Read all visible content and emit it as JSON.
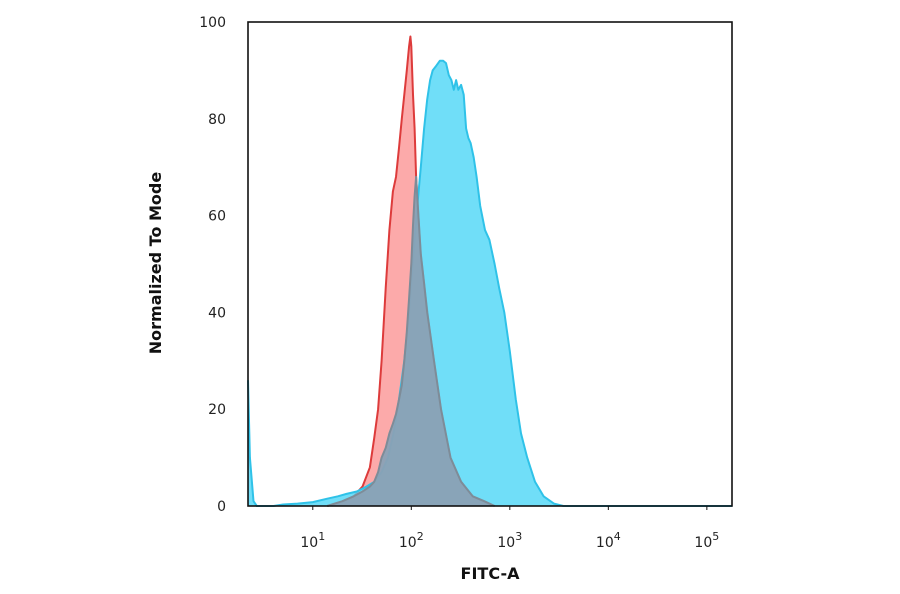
{
  "chart_data": {
    "type": "area",
    "title": "",
    "xlabel": "FITC-A",
    "ylabel": "Normalized To Mode",
    "xscale": "log",
    "xlim": [
      2.2,
      180000
    ],
    "ylim": [
      0,
      100
    ],
    "grid": false,
    "legend": "none",
    "x_ticks": [
      {
        "value": 10,
        "base": "10",
        "exp": "1"
      },
      {
        "value": 100,
        "base": "10",
        "exp": "2"
      },
      {
        "value": 1000,
        "base": "10",
        "exp": "3"
      },
      {
        "value": 10000,
        "base": "10",
        "exp": "4"
      },
      {
        "value": 100000,
        "base": "10",
        "exp": "5"
      }
    ],
    "y_ticks": [
      {
        "value": 0,
        "label": "0"
      },
      {
        "value": 20,
        "label": "20"
      },
      {
        "value": 40,
        "label": "40"
      },
      {
        "value": 60,
        "label": "60"
      },
      {
        "value": 80,
        "label": "80"
      },
      {
        "value": 100,
        "label": "100"
      }
    ],
    "series": [
      {
        "fill": "#fb9b9b",
        "stroke": "#dd3b3b",
        "x": [
          14,
          20,
          26,
          32,
          38,
          42,
          46,
          50,
          55,
          60,
          65,
          70,
          75,
          80,
          85,
          90,
          95,
          98,
          100,
          104,
          108,
          112,
          118,
          125,
          135,
          150,
          170,
          200,
          250,
          320,
          420,
          550,
          700
        ],
        "y": [
          0,
          1,
          2,
          4,
          8,
          14,
          20,
          30,
          45,
          57,
          65,
          68,
          74,
          80,
          85,
          90,
          95,
          97,
          95,
          85,
          78,
          68,
          60,
          52,
          46,
          38,
          30,
          20,
          10,
          5,
          2,
          1,
          0
        ]
      },
      {
        "fill": "#57d8f7",
        "stroke": "#2fc2e8",
        "x": [
          2.2,
          2.3,
          2.5,
          2.7,
          3,
          3.5,
          4,
          5,
          7,
          10,
          14,
          18,
          22,
          28,
          35,
          42,
          50,
          58,
          66,
          75,
          85,
          95,
          105,
          115,
          125,
          135,
          145,
          155,
          165,
          180,
          195,
          210,
          225,
          240,
          255,
          270,
          285,
          300,
          320,
          340,
          360,
          380,
          400,
          430,
          460,
          500,
          560,
          620,
          700,
          780,
          880,
          1000,
          1150,
          1300,
          1500,
          1800,
          2200,
          2800,
          3500,
          5000,
          10000,
          50000,
          180000
        ],
        "y": [
          26,
          10,
          1,
          0,
          0,
          0,
          0,
          0.3,
          0.5,
          0.8,
          1.5,
          2,
          2.5,
          3,
          4,
          5,
          7,
          10,
          15,
          22,
          30,
          40,
          52,
          62,
          70,
          78,
          84,
          88,
          90,
          91,
          92,
          92,
          91.5,
          89,
          88,
          86,
          88,
          86,
          87,
          85,
          78,
          76,
          75,
          72,
          68,
          62,
          57,
          55,
          50,
          45,
          40,
          32,
          22,
          15,
          10,
          5,
          2,
          0.5,
          0,
          0,
          0,
          0,
          0
        ]
      },
      {
        "fill": "#8aa1b5",
        "stroke": "#7e8c98",
        "x": [
          14,
          20,
          26,
          32,
          38,
          42,
          46,
          50,
          55,
          60,
          65,
          70,
          75,
          80,
          85,
          90,
          95,
          100,
          104,
          108,
          112,
          118,
          125,
          135,
          145,
          150,
          170,
          200,
          250,
          320,
          420,
          550,
          700
        ],
        "y": [
          0,
          1,
          2,
          3,
          4,
          5,
          7,
          10,
          12,
          15,
          17,
          19,
          22,
          25,
          30,
          36,
          43,
          50,
          58,
          64,
          68,
          60,
          52,
          46,
          40,
          38,
          30,
          20,
          10,
          5,
          2,
          1,
          0
        ]
      }
    ]
  }
}
